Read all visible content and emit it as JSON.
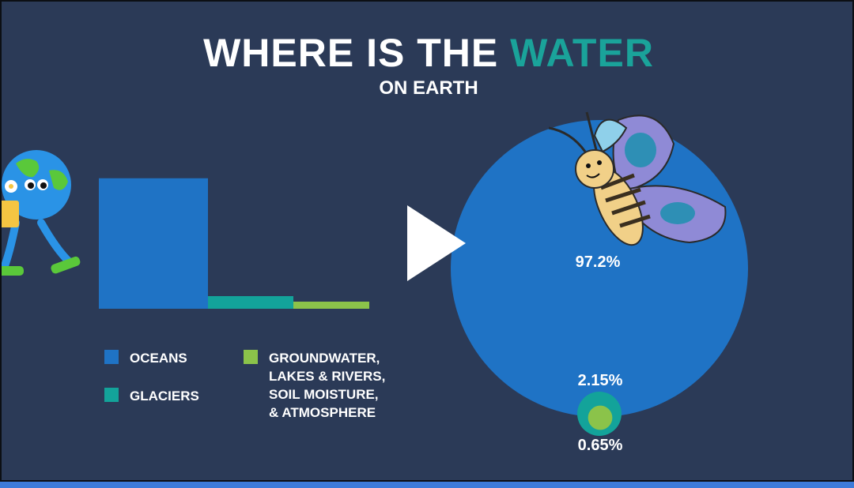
{
  "title": {
    "part1": "WHERE IS THE ",
    "part2": "WATER",
    "subtitle": "ON EARTH"
  },
  "colors": {
    "background": "#2b3a57",
    "oceans": "#1f73c5",
    "glaciers": "#13a39a",
    "groundwater": "#8bc34a",
    "accent": "#1aa39a"
  },
  "legend": {
    "oceans": "OCEANS",
    "glaciers": "GLACIERS",
    "groundwater_lines": [
      "GROUNDWATER,",
      "LAKES & RIVERS,",
      "SOIL MOISTURE,",
      "& ATMOSPHERE"
    ]
  },
  "chart_data": {
    "type": "bar",
    "categories": [
      "OCEANS",
      "GLACIERS",
      "GROUNDWATER, LAKES & RIVERS, SOIL MOISTURE, & ATMOSPHERE"
    ],
    "values": [
      97.2,
      2.15,
      0.65
    ],
    "ylim": [
      0,
      100
    ],
    "grid": false,
    "pie_labels": [
      "97.2%",
      "2.15%",
      "0.65%"
    ]
  },
  "player": {
    "play_icon": "play-icon"
  }
}
